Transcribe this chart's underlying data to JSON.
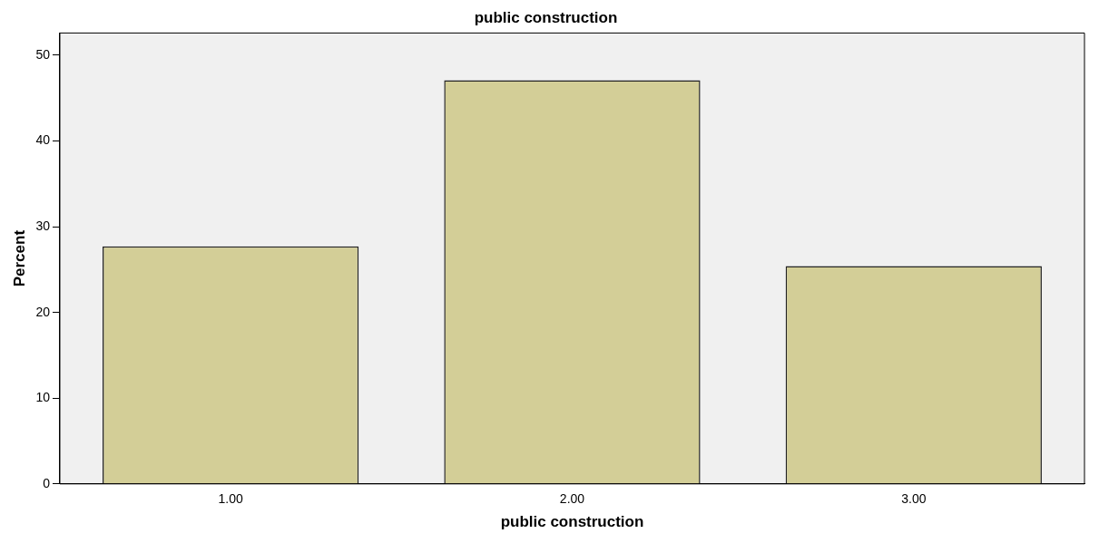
{
  "chart_data": {
    "type": "bar",
    "title": "public construction",
    "xlabel": "public construction",
    "ylabel": "Percent",
    "categories": [
      "1.00",
      "2.00",
      "3.00"
    ],
    "values": [
      27.7,
      47.1,
      25.4
    ],
    "color": "#d3ce97",
    "ylim": [
      0,
      52.6
    ],
    "yticks": [
      0,
      10,
      20,
      30,
      40,
      50
    ],
    "grid": false,
    "legend": false
  }
}
